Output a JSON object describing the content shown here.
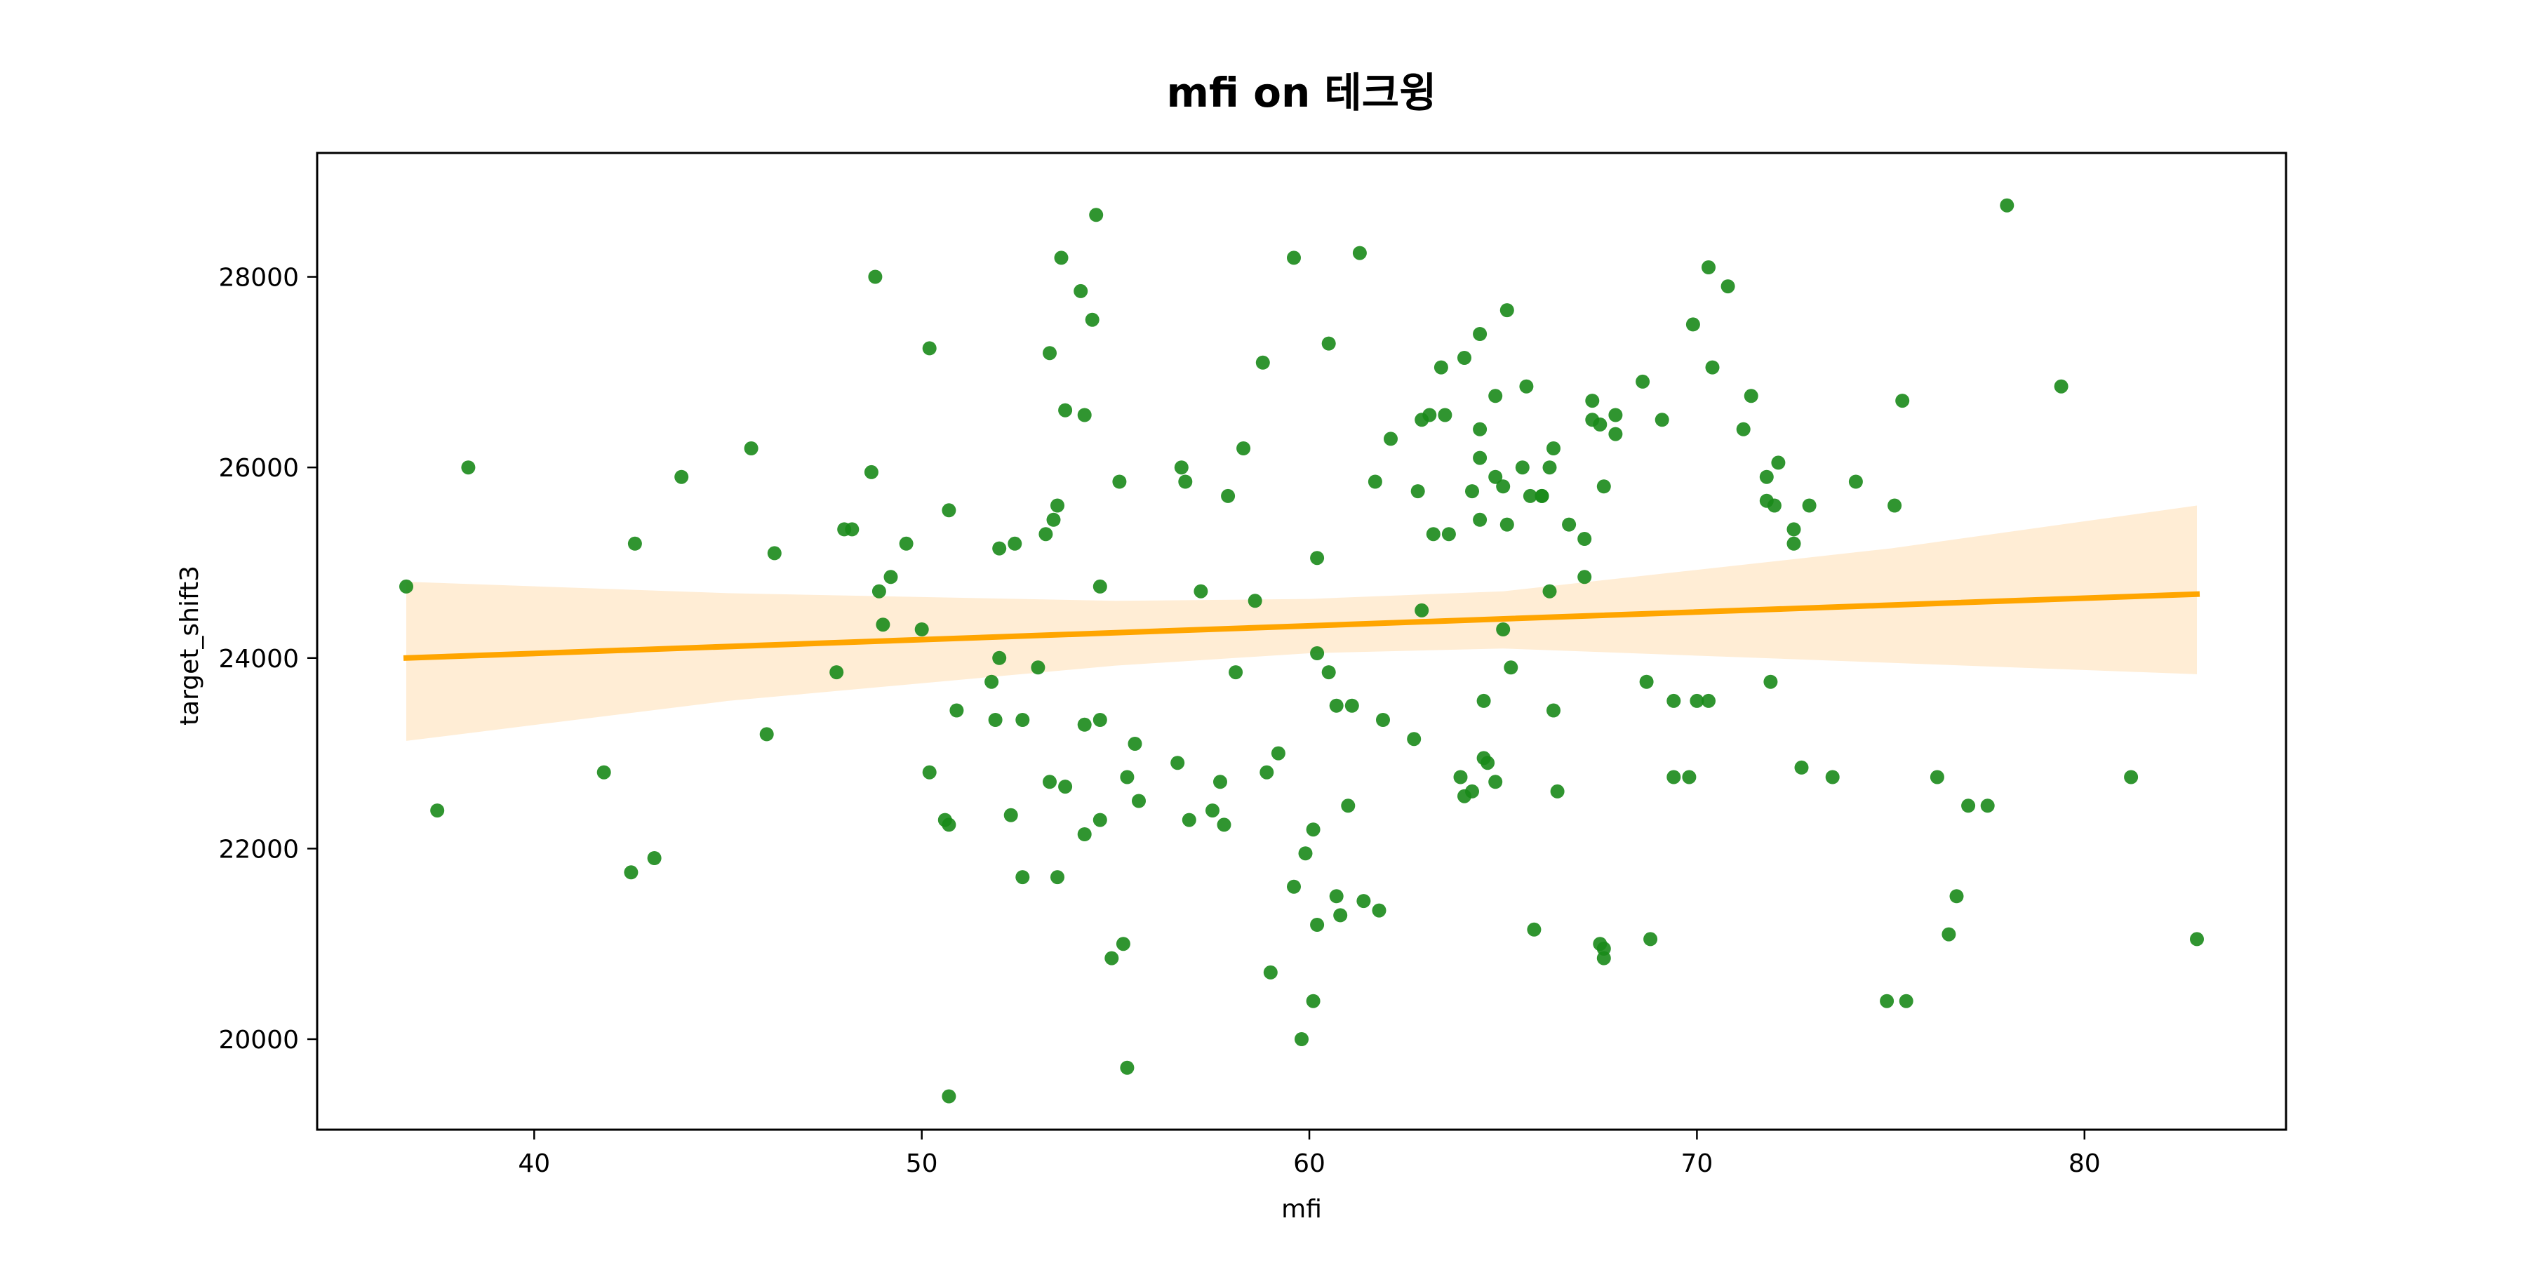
{
  "chart_data": {
    "type": "scatter",
    "title": "mfi on 테크윙",
    "xlabel": "mfi",
    "ylabel": "target_shift3",
    "xlim": [
      34.4,
      85.2
    ],
    "ylim": [
      19050,
      29300
    ],
    "xticks": [
      40,
      50,
      60,
      70,
      80
    ],
    "yticks": [
      20000,
      22000,
      24000,
      26000,
      28000
    ],
    "grid": false,
    "colors": {
      "points": "#1a8a1a",
      "regression_line": "#ffa500",
      "confidence_band": "#ffedd5"
    },
    "regression": {
      "x": [
        36.7,
        82.9
      ],
      "y": [
        24000,
        24670
      ]
    },
    "confidence_band": {
      "x": [
        36.7,
        45,
        55,
        60,
        65,
        75,
        82.9
      ],
      "upper": [
        24800,
        24680,
        24600,
        24620,
        24700,
        25150,
        25600
      ],
      "lower": [
        23130,
        23550,
        23920,
        24050,
        24100,
        23950,
        23830
      ]
    },
    "points": [
      [
        36.7,
        24750
      ],
      [
        37.5,
        22400
      ],
      [
        38.3,
        26000
      ],
      [
        41.8,
        22800
      ],
      [
        42.5,
        21750
      ],
      [
        42.6,
        25200
      ],
      [
        43.1,
        21900
      ],
      [
        43.8,
        25900
      ],
      [
        45.6,
        26200
      ],
      [
        46.0,
        23200
      ],
      [
        46.2,
        25100
      ],
      [
        47.8,
        23850
      ],
      [
        48.0,
        25350
      ],
      [
        48.2,
        25350
      ],
      [
        48.7,
        25950
      ],
      [
        48.8,
        28000
      ],
      [
        48.9,
        24700
      ],
      [
        49.0,
        24350
      ],
      [
        49.2,
        24850
      ],
      [
        49.6,
        25200
      ],
      [
        50.0,
        24300
      ],
      [
        50.2,
        27250
      ],
      [
        50.2,
        22800
      ],
      [
        50.6,
        22300
      ],
      [
        50.7,
        22250
      ],
      [
        50.7,
        25550
      ],
      [
        50.7,
        19400
      ],
      [
        50.9,
        23450
      ],
      [
        51.8,
        23750
      ],
      [
        51.9,
        23350
      ],
      [
        52.0,
        24000
      ],
      [
        52.0,
        25150
      ],
      [
        52.3,
        22350
      ],
      [
        52.4,
        25200
      ],
      [
        52.6,
        23350
      ],
      [
        52.6,
        21700
      ],
      [
        53.0,
        23900
      ],
      [
        53.2,
        25300
      ],
      [
        53.3,
        27200
      ],
      [
        53.3,
        22700
      ],
      [
        53.4,
        25450
      ],
      [
        53.5,
        25600
      ],
      [
        53.5,
        21700
      ],
      [
        53.6,
        28200
      ],
      [
        53.7,
        26600
      ],
      [
        53.7,
        22650
      ],
      [
        54.1,
        27850
      ],
      [
        54.2,
        23300
      ],
      [
        54.2,
        22150
      ],
      [
        54.2,
        26550
      ],
      [
        54.4,
        27550
      ],
      [
        54.5,
        28650
      ],
      [
        54.6,
        24750
      ],
      [
        54.6,
        22300
      ],
      [
        54.6,
        23350
      ],
      [
        54.9,
        20850
      ],
      [
        55.1,
        25850
      ],
      [
        55.2,
        21000
      ],
      [
        55.3,
        22750
      ],
      [
        55.3,
        19700
      ],
      [
        55.5,
        23100
      ],
      [
        55.6,
        22500
      ],
      [
        56.6,
        22900
      ],
      [
        56.7,
        26000
      ],
      [
        56.8,
        25850
      ],
      [
        56.9,
        22300
      ],
      [
        57.2,
        24700
      ],
      [
        57.5,
        22400
      ],
      [
        57.7,
        22700
      ],
      [
        57.8,
        22250
      ],
      [
        57.9,
        25700
      ],
      [
        58.1,
        23850
      ],
      [
        58.3,
        26200
      ],
      [
        58.6,
        24600
      ],
      [
        58.8,
        27100
      ],
      [
        58.9,
        22800
      ],
      [
        59.0,
        20700
      ],
      [
        59.2,
        23000
      ],
      [
        59.6,
        28200
      ],
      [
        59.6,
        21600
      ],
      [
        59.8,
        20000
      ],
      [
        59.9,
        21950
      ],
      [
        60.1,
        22200
      ],
      [
        60.1,
        20400
      ],
      [
        60.2,
        25050
      ],
      [
        60.2,
        24050
      ],
      [
        60.2,
        21200
      ],
      [
        60.5,
        27300
      ],
      [
        60.5,
        23850
      ],
      [
        60.7,
        21500
      ],
      [
        60.7,
        23500
      ],
      [
        60.8,
        21300
      ],
      [
        61.0,
        22450
      ],
      [
        61.1,
        23500
      ],
      [
        61.3,
        28250
      ],
      [
        61.4,
        21450
      ],
      [
        61.7,
        25850
      ],
      [
        61.8,
        21350
      ],
      [
        61.9,
        23350
      ],
      [
        62.1,
        26300
      ],
      [
        62.7,
        23150
      ],
      [
        62.8,
        25750
      ],
      [
        62.9,
        26500
      ],
      [
        62.9,
        24500
      ],
      [
        63.1,
        26550
      ],
      [
        63.2,
        25300
      ],
      [
        63.4,
        27050
      ],
      [
        63.5,
        26550
      ],
      [
        63.6,
        25300
      ],
      [
        63.9,
        22750
      ],
      [
        64.0,
        27150
      ],
      [
        64.0,
        22550
      ],
      [
        64.2,
        25750
      ],
      [
        64.2,
        22600
      ],
      [
        64.4,
        26100
      ],
      [
        64.4,
        25450
      ],
      [
        64.4,
        27400
      ],
      [
        64.4,
        26400
      ],
      [
        64.5,
        23550
      ],
      [
        64.5,
        22950
      ],
      [
        64.6,
        22900
      ],
      [
        64.8,
        26750
      ],
      [
        64.8,
        25900
      ],
      [
        64.8,
        22700
      ],
      [
        65.0,
        24300
      ],
      [
        65.0,
        25800
      ],
      [
        65.1,
        27650
      ],
      [
        65.1,
        25400
      ],
      [
        65.2,
        23900
      ],
      [
        65.5,
        26000
      ],
      [
        65.6,
        26850
      ],
      [
        65.7,
        25700
      ],
      [
        65.8,
        21150
      ],
      [
        66.0,
        25700
      ],
      [
        66.0,
        25700
      ],
      [
        66.2,
        26000
      ],
      [
        66.2,
        24700
      ],
      [
        66.3,
        26200
      ],
      [
        66.3,
        23450
      ],
      [
        66.4,
        22600
      ],
      [
        66.7,
        25400
      ],
      [
        67.1,
        25250
      ],
      [
        67.1,
        24850
      ],
      [
        67.3,
        26700
      ],
      [
        67.3,
        26500
      ],
      [
        67.5,
        26450
      ],
      [
        67.5,
        21000
      ],
      [
        67.6,
        20950
      ],
      [
        67.6,
        20850
      ],
      [
        67.6,
        25800
      ],
      [
        67.9,
        26550
      ],
      [
        67.9,
        26350
      ],
      [
        68.6,
        26900
      ],
      [
        68.7,
        23750
      ],
      [
        68.8,
        21050
      ],
      [
        69.1,
        26500
      ],
      [
        69.4,
        23550
      ],
      [
        69.4,
        22750
      ],
      [
        69.8,
        22750
      ],
      [
        69.9,
        27500
      ],
      [
        70.0,
        23550
      ],
      [
        70.3,
        23550
      ],
      [
        70.3,
        28100
      ],
      [
        70.4,
        27050
      ],
      [
        70.8,
        27900
      ],
      [
        71.2,
        26400
      ],
      [
        71.4,
        26750
      ],
      [
        71.8,
        25650
      ],
      [
        71.8,
        25900
      ],
      [
        71.9,
        23750
      ],
      [
        72.0,
        25600
      ],
      [
        72.1,
        26050
      ],
      [
        72.5,
        25350
      ],
      [
        72.5,
        25200
      ],
      [
        72.7,
        22850
      ],
      [
        72.9,
        25600
      ],
      [
        73.5,
        22750
      ],
      [
        74.1,
        25850
      ],
      [
        74.9,
        20400
      ],
      [
        75.1,
        25600
      ],
      [
        75.3,
        26700
      ],
      [
        75.4,
        20400
      ],
      [
        76.2,
        22750
      ],
      [
        76.5,
        21100
      ],
      [
        76.7,
        21500
      ],
      [
        77.0,
        22450
      ],
      [
        77.5,
        22450
      ],
      [
        78.0,
        28750
      ],
      [
        79.4,
        26850
      ],
      [
        81.2,
        22750
      ],
      [
        82.9,
        21050
      ]
    ]
  }
}
